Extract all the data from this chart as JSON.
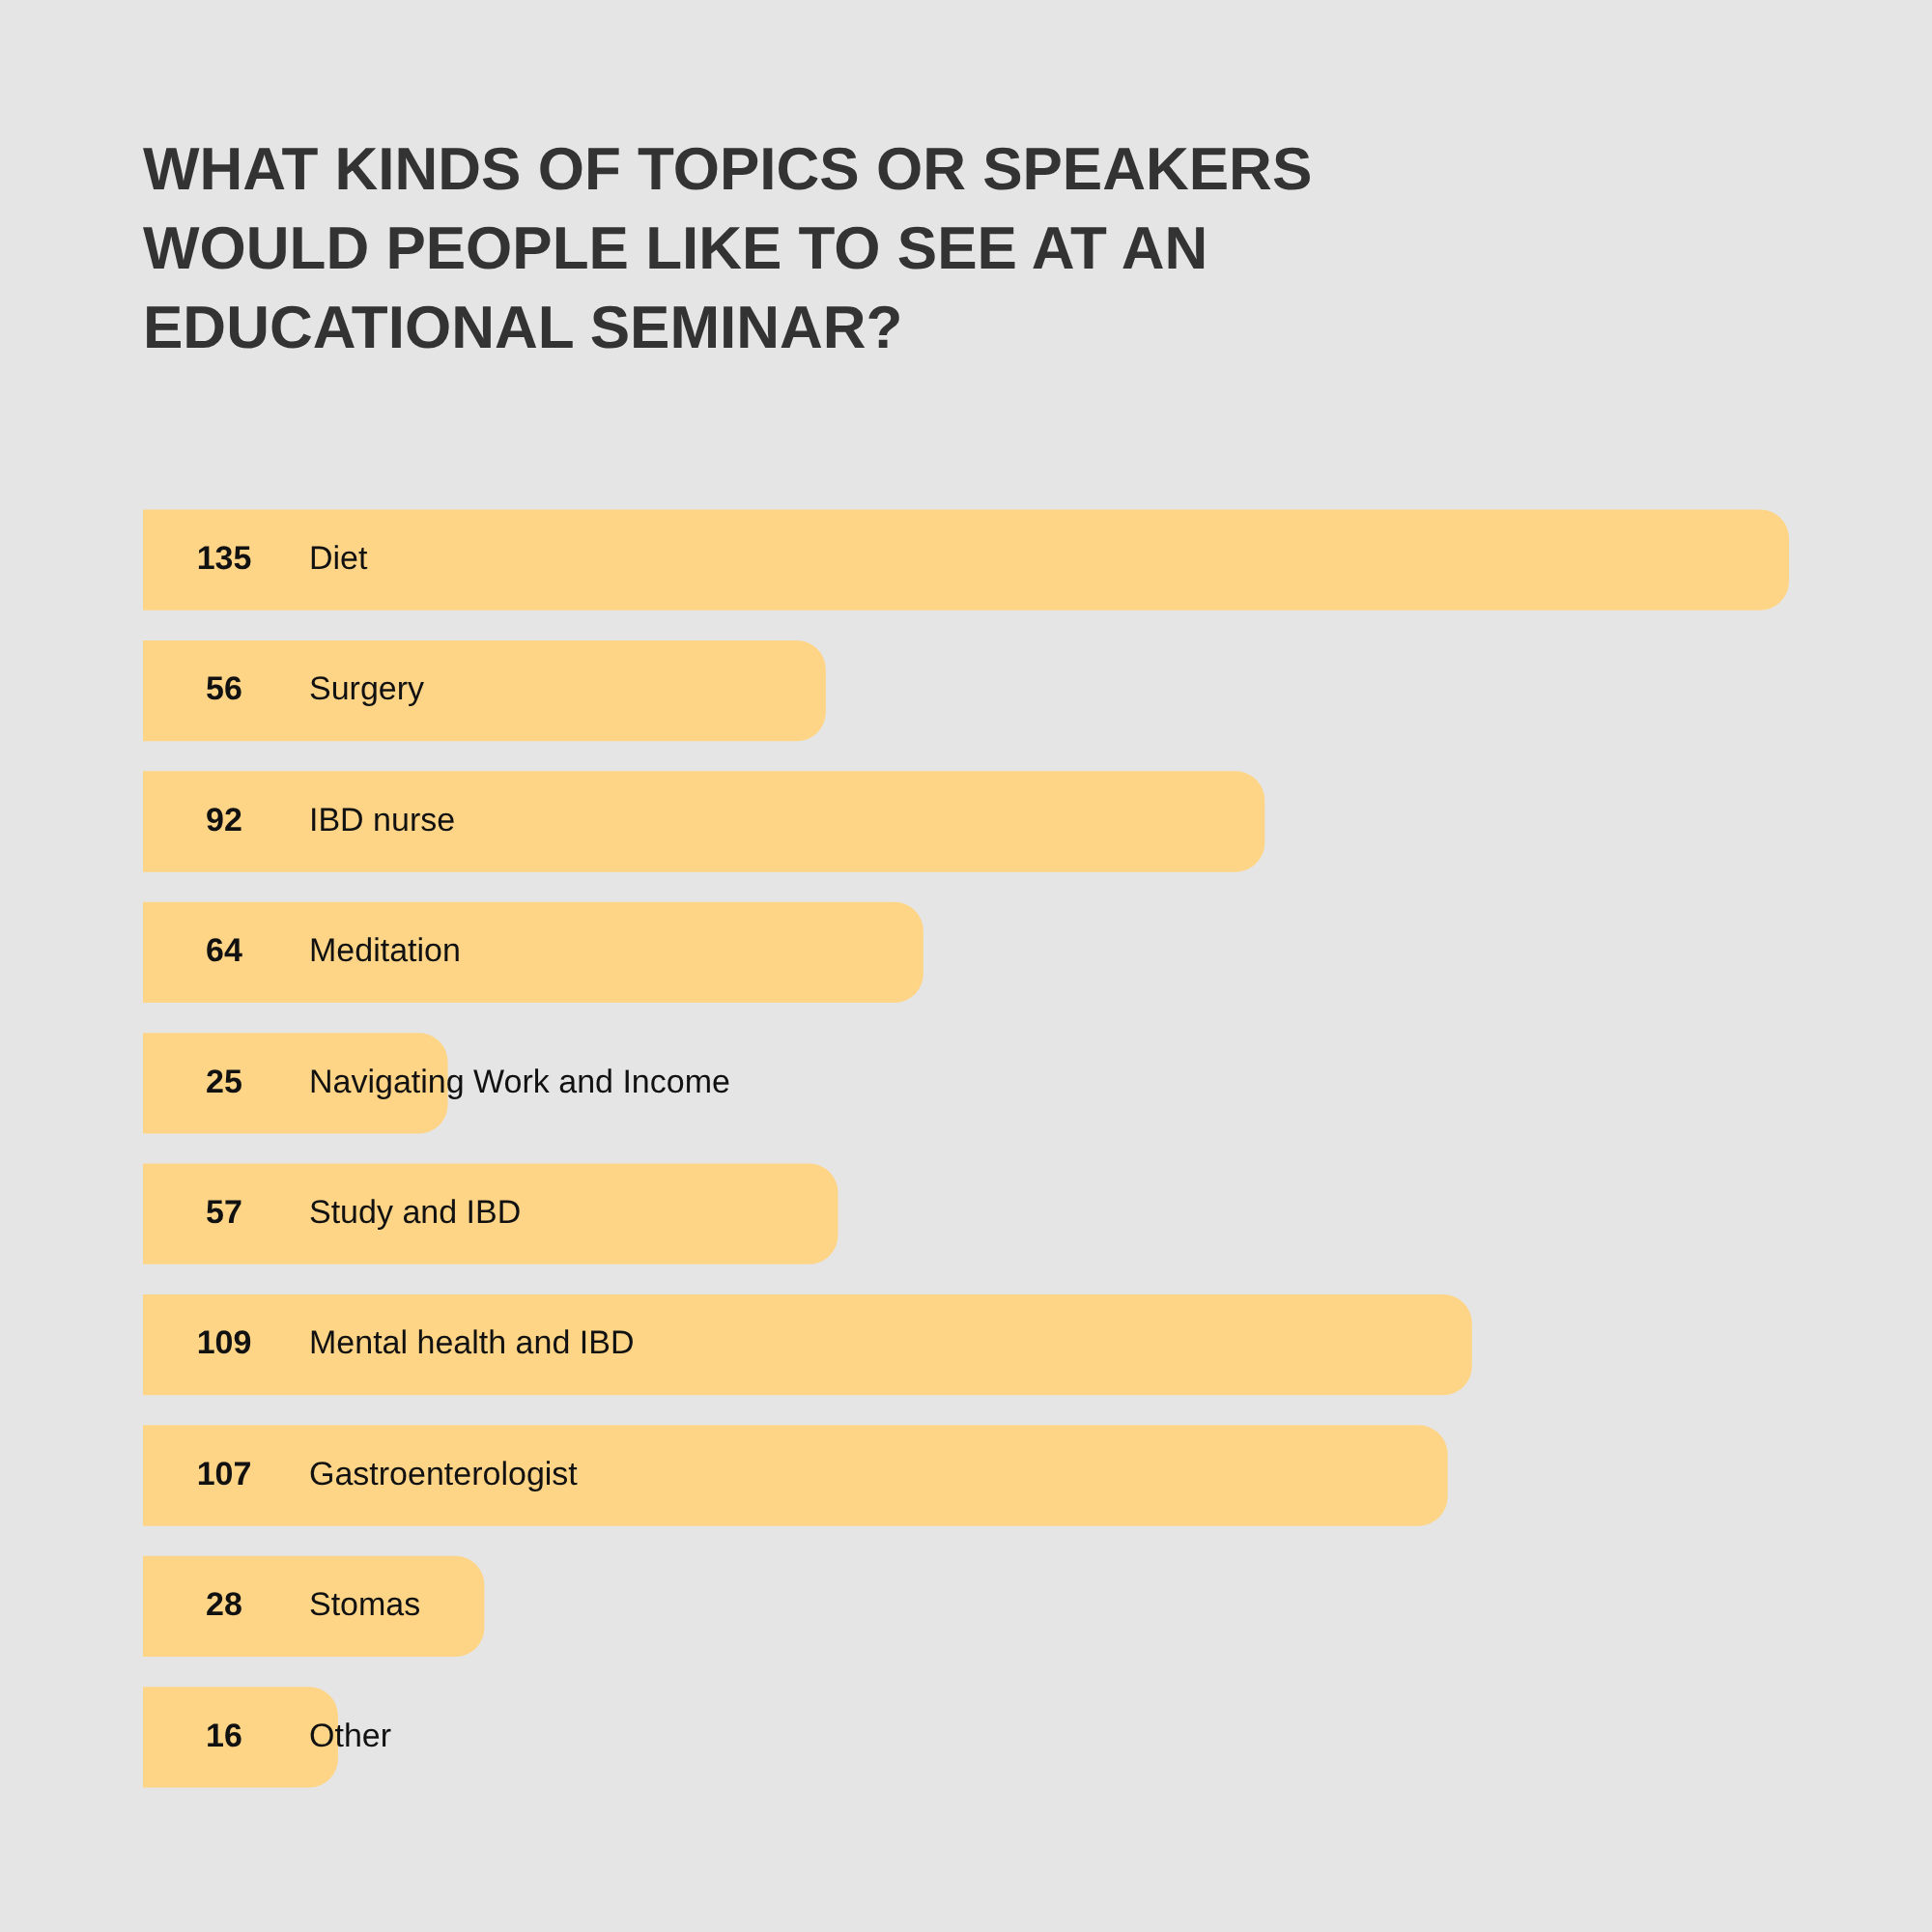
{
  "chart_data": {
    "type": "bar",
    "orientation": "horizontal",
    "title": "WHAT KINDS OF TOPICS OR SPEAKERS WOULD PEOPLE LIKE TO SEE AT AN EDUCATIONAL SEMINAR?",
    "categories": [
      "Diet",
      "Surgery",
      "IBD nurse",
      "Meditation",
      "Navigating Work and Income",
      "Study and IBD",
      "Mental health and IBD",
      "Gastroenterologist",
      "Stomas",
      "Other"
    ],
    "values": [
      135,
      56,
      92,
      64,
      25,
      57,
      109,
      107,
      28,
      16
    ],
    "color": "#fed587",
    "data_labels": true
  }
}
